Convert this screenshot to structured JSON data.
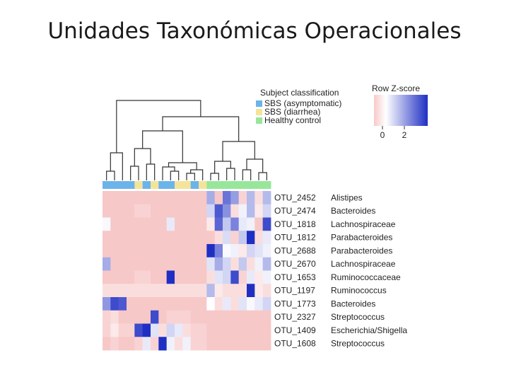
{
  "slide": {
    "title": "Unidades Taxonómicas Operacionales"
  },
  "legend": {
    "title": "Subject classification",
    "items": [
      {
        "label": "SBS (asymptomatic)",
        "color": "#6ab4ea"
      },
      {
        "label": "SBS (diarrhea)",
        "color": "#f3e49a"
      },
      {
        "label": "Healthy control",
        "color": "#97e69a"
      }
    ]
  },
  "colorkey": {
    "title": "Row Z-score",
    "tick_labels": [
      "0",
      "2"
    ],
    "low": 0,
    "high": 2
  },
  "chart_data": {
    "type": "heatmap",
    "rows": [
      {
        "otu": "OTU_2452",
        "taxon": "Alistipes"
      },
      {
        "otu": "OTU_2474",
        "taxon": "Bacteroides"
      },
      {
        "otu": "OTU_1818",
        "taxon": "Lachnospiraceae"
      },
      {
        "otu": "OTU_1812",
        "taxon": "Parabacteroides"
      },
      {
        "otu": "OTU_2688",
        "taxon": "Parabacteroides"
      },
      {
        "otu": "OTU_2670",
        "taxon": "Lachnospiraceae"
      },
      {
        "otu": "OTU_1653",
        "taxon": "Ruminococcaceae"
      },
      {
        "otu": "OTU_1197",
        "taxon": "Ruminococcus"
      },
      {
        "otu": "OTU_1773",
        "taxon": "Bacteroides"
      },
      {
        "otu": "OTU_2327",
        "taxon": "Streptococcus"
      },
      {
        "otu": "OTU_1409",
        "taxon": "Escherichia/Shigella"
      },
      {
        "otu": "OTU_1608",
        "taxon": "Streptococcus"
      }
    ],
    "column_groups": [
      "A",
      "A",
      "A",
      "A",
      "D",
      "A",
      "D",
      "A",
      "A",
      "D",
      "D",
      "A",
      "D",
      "H",
      "H",
      "H",
      "H",
      "H",
      "H",
      "H",
      "H"
    ],
    "values": [
      [
        -0.6,
        -0.6,
        -0.6,
        -0.6,
        -0.6,
        -0.6,
        -0.6,
        -0.6,
        -0.6,
        -0.6,
        -0.6,
        -0.6,
        -0.6,
        1.2,
        -0.5,
        2.0,
        1.4,
        -0.4,
        1.0,
        -0.3,
        1.0
      ],
      [
        -0.5,
        -0.5,
        -0.5,
        -0.5,
        -0.4,
        -0.4,
        -0.5,
        -0.5,
        -0.5,
        -0.5,
        -0.5,
        -0.5,
        -0.5,
        0.6,
        2.4,
        1.6,
        -0.3,
        0.2,
        1.0,
        -0.2,
        0.6
      ],
      [
        0.1,
        -0.5,
        -0.5,
        -0.5,
        -0.5,
        -0.5,
        -0.5,
        -0.5,
        0.3,
        -0.5,
        -0.5,
        -0.5,
        -0.5,
        -0.2,
        2.2,
        0.8,
        1.8,
        0.3,
        0.2,
        -0.5,
        2.6
      ],
      [
        -0.5,
        -0.5,
        -0.5,
        -0.5,
        -0.5,
        -0.5,
        -0.5,
        -0.5,
        -0.5,
        -0.5,
        -0.5,
        -0.5,
        -0.5,
        -0.5,
        -0.3,
        0.5,
        -0.4,
        0.8,
        3.0,
        -0.3,
        0.3
      ],
      [
        -0.5,
        -0.5,
        -0.5,
        -0.5,
        -0.5,
        -0.5,
        -0.5,
        -0.5,
        -0.5,
        -0.5,
        -0.5,
        -0.5,
        -0.5,
        3.0,
        1.8,
        0.1,
        0.2,
        -0.2,
        0.6,
        0.4,
        0.2
      ],
      [
        1.2,
        -0.5,
        -0.5,
        -0.5,
        -0.5,
        -0.5,
        -0.5,
        -0.5,
        -0.5,
        -0.5,
        -0.5,
        -0.5,
        -0.5,
        0.4,
        1.2,
        0.6,
        -0.3,
        0.8,
        -0.3,
        0.2,
        1.0
      ],
      [
        -0.5,
        -0.5,
        -0.5,
        -0.5,
        -0.4,
        -0.4,
        -0.5,
        -0.5,
        3.0,
        -0.5,
        -0.5,
        -0.5,
        -0.5,
        -0.3,
        0.4,
        0.6,
        2.6,
        -0.4,
        0.3,
        -0.2,
        0.2
      ],
      [
        -0.3,
        -0.3,
        -0.3,
        -0.3,
        -0.3,
        -0.3,
        -0.3,
        -0.3,
        -0.3,
        -0.3,
        -0.3,
        -0.3,
        -0.3,
        1.0,
        -0.2,
        -0.3,
        -0.3,
        -0.3,
        3.0,
        -0.2,
        -0.3
      ],
      [
        1.5,
        2.6,
        2.4,
        -0.5,
        -0.5,
        -0.5,
        -0.5,
        -0.5,
        -0.5,
        -0.5,
        -0.5,
        -0.5,
        -0.5,
        0.0,
        -0.3,
        0.3,
        -0.3,
        0.4,
        0.1,
        0.3,
        0.6
      ],
      [
        -0.4,
        -0.3,
        -0.5,
        -0.5,
        -0.5,
        -0.5,
        2.6,
        -0.5,
        -0.4,
        -0.4,
        -0.4,
        -0.5,
        -0.5,
        -0.5,
        -0.5,
        -0.5,
        -0.5,
        -0.5,
        -0.5,
        -0.5,
        -0.5
      ],
      [
        -0.4,
        -0.2,
        -0.4,
        -0.4,
        2.6,
        3.0,
        0.4,
        -0.3,
        0.6,
        0.3,
        -0.3,
        -0.4,
        -0.4,
        -0.5,
        -0.5,
        -0.5,
        -0.5,
        -0.5,
        -0.5,
        -0.5,
        -0.5
      ],
      [
        -0.5,
        -0.4,
        -0.5,
        -0.5,
        -0.4,
        0.3,
        -0.4,
        3.0,
        0.2,
        -0.3,
        0.2,
        -0.4,
        -0.4,
        -0.5,
        -0.5,
        -0.5,
        -0.5,
        -0.5,
        -0.5,
        -0.5,
        -0.5
      ]
    ]
  }
}
